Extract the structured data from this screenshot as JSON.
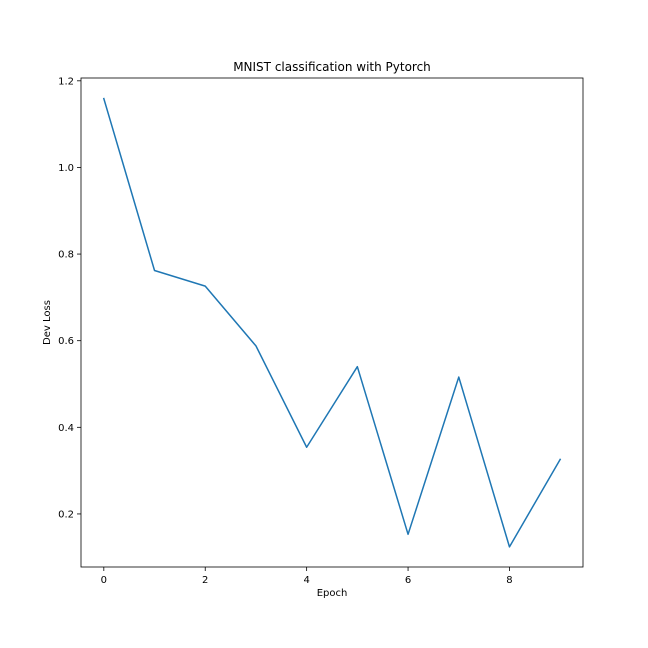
{
  "chart_data": {
    "type": "line",
    "title": "MNIST classification with Pytorch",
    "xlabel": "Epoch",
    "ylabel": "Dev Loss",
    "x": [
      0,
      1,
      2,
      3,
      4,
      5,
      6,
      7,
      8,
      9
    ],
    "series": [
      {
        "values": [
          1.159,
          0.762,
          0.726,
          0.588,
          0.354,
          0.54,
          0.153,
          0.516,
          0.124,
          0.326
        ],
        "color": "#1f77b4"
      }
    ],
    "xlim": [
      -0.45,
      9.45
    ],
    "ylim": [
      0.0775,
      1.2065
    ],
    "xticks": [
      0,
      2,
      4,
      6,
      8
    ],
    "xtick_labels": [
      "0",
      "2",
      "4",
      "6",
      "8"
    ],
    "yticks": [
      0.2,
      0.4,
      0.6,
      0.8,
      1.0,
      1.2
    ],
    "ytick_labels": [
      "0.2",
      "0.4",
      "0.6",
      "0.8",
      "1.0",
      "1.2"
    ],
    "grid": false,
    "legend": "none"
  }
}
